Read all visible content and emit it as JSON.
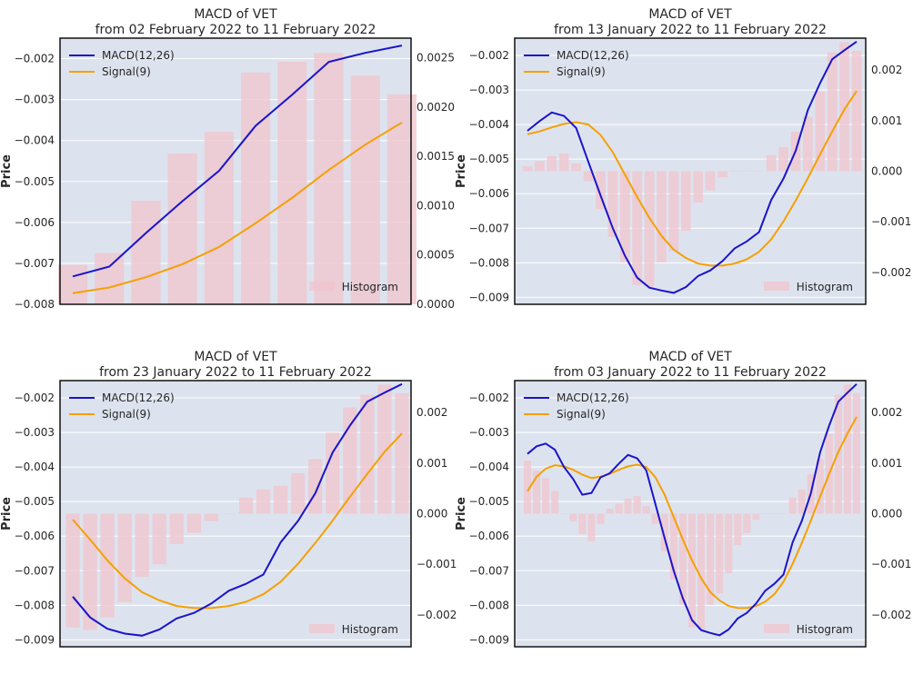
{
  "colors": {
    "background": "#ffffff",
    "plot_background": "#dde3ee",
    "grid": "#ffffff",
    "macd": "#1a14cc",
    "signal": "#f5a000",
    "histogram": "#f0c4cc"
  },
  "chart_data": [
    {
      "type": "line",
      "title": "MACD of VET",
      "subtitle": "from 02 February 2022 to 11 February 2022",
      "ylabel": "Price",
      "ylim": [
        -0.008,
        -0.0015
      ],
      "y_ticks": [
        -0.008,
        -0.007,
        -0.006,
        -0.005,
        -0.004,
        -0.003,
        -0.002
      ],
      "y_tick_labels": [
        "−0.008",
        "−0.007",
        "−0.006",
        "−0.005",
        "−0.004",
        "−0.003",
        "−0.002"
      ],
      "y2lim": [
        0.0,
        0.0027
      ],
      "y2_ticks": [
        0.0,
        0.0005,
        0.001,
        0.0015,
        0.002,
        0.0025
      ],
      "y2_tick_labels": [
        "0.0000",
        "0.0005",
        "0.0010",
        "0.0015",
        "0.0020",
        "0.0025"
      ],
      "legend_position": "top-left",
      "histogram_legend_position": "bottom-right",
      "series": [
        {
          "name": "MACD(12,26)",
          "role": "macd",
          "values": [
            -0.00732,
            -0.00708,
            -0.00626,
            -0.00548,
            -0.00474,
            -0.00364,
            -0.00288,
            -0.00208,
            -0.00186,
            -0.00168
          ]
        },
        {
          "name": "Signal(9)",
          "role": "signal",
          "values": [
            -0.00773,
            -0.00759,
            -0.00734,
            -0.00702,
            -0.0066,
            -0.00602,
            -0.0054,
            -0.00472,
            -0.0041,
            -0.00356
          ]
        },
        {
          "name": "Histogram",
          "role": "histogram",
          "values": [
            0.0004,
            0.00052,
            0.00105,
            0.00153,
            0.00175,
            0.00235,
            0.00246,
            0.00255,
            0.00232,
            0.00213
          ]
        }
      ]
    },
    {
      "type": "line",
      "title": "MACD of VET",
      "subtitle": "from 13 January 2022 to 11 February 2022",
      "ylabel": "Price",
      "ylim": [
        -0.0092,
        -0.0015
      ],
      "y_ticks": [
        -0.009,
        -0.008,
        -0.007,
        -0.006,
        -0.005,
        -0.004,
        -0.003,
        -0.002
      ],
      "y_tick_labels": [
        "−0.009",
        "−0.008",
        "−0.007",
        "−0.006",
        "−0.005",
        "−0.004",
        "−0.003",
        "−0.002"
      ],
      "y2lim": [
        -0.00263,
        0.00263
      ],
      "y2_ticks": [
        -0.002,
        -0.001,
        0.0,
        0.001,
        0.002
      ],
      "y2_tick_labels": [
        "−0.002",
        "−0.001",
        "0.000",
        "0.001",
        "0.002"
      ],
      "legend_position": "top-left",
      "histogram_legend_position": "bottom-right",
      "series": [
        {
          "name": "MACD(12,26)",
          "role": "macd",
          "values": [
            -0.00418,
            -0.0039,
            -0.00365,
            -0.00375,
            -0.0041,
            -0.00508,
            -0.00605,
            -0.007,
            -0.0078,
            -0.00843,
            -0.00872,
            -0.0088,
            -0.00887,
            -0.0087,
            -0.00838,
            -0.00822,
            -0.00795,
            -0.00758,
            -0.00738,
            -0.00711,
            -0.00618,
            -0.00556,
            -0.00476,
            -0.00358,
            -0.0028,
            -0.00211,
            -0.00185,
            -0.0016
          ]
        },
        {
          "name": "Signal(9)",
          "role": "signal",
          "values": [
            -0.00428,
            -0.0042,
            -0.00408,
            -0.00398,
            -0.00393,
            -0.004,
            -0.0043,
            -0.0048,
            -0.00545,
            -0.0061,
            -0.0067,
            -0.00722,
            -0.00762,
            -0.00786,
            -0.00802,
            -0.00808,
            -0.00808,
            -0.00802,
            -0.0079,
            -0.00768,
            -0.00732,
            -0.0068,
            -0.0062,
            -0.00555,
            -0.00486,
            -0.0042,
            -0.00356,
            -0.00303
          ]
        },
        {
          "name": "Histogram",
          "role": "histogram",
          "values": [
            0.0001,
            0.0002,
            0.0003,
            0.00035,
            0.00015,
            -0.0002,
            -0.00075,
            -0.0013,
            -0.0018,
            -0.00225,
            -0.00228,
            -0.0018,
            -0.00158,
            -0.00118,
            -0.00062,
            -0.00038,
            -0.00012,
            0.0,
            0.0,
            0.0,
            0.00032,
            0.00048,
            0.00078,
            0.00108,
            0.00158,
            0.00235,
            0.00255,
            0.00238
          ]
        }
      ]
    },
    {
      "type": "line",
      "title": "MACD of VET",
      "subtitle": "from 23 January 2022 to 11 February 2022",
      "ylabel": "Price",
      "ylim": [
        -0.0092,
        -0.0015
      ],
      "y_ticks": [
        -0.009,
        -0.008,
        -0.007,
        -0.006,
        -0.005,
        -0.004,
        -0.003,
        -0.002
      ],
      "y_tick_labels": [
        "−0.009",
        "−0.008",
        "−0.007",
        "−0.006",
        "−0.005",
        "−0.004",
        "−0.003",
        "−0.002"
      ],
      "y2lim": [
        -0.00263,
        0.00263
      ],
      "y2_ticks": [
        -0.002,
        -0.001,
        0.0,
        0.001,
        0.002
      ],
      "y2_tick_labels": [
        "−0.002",
        "−0.001",
        "0.000",
        "0.001",
        "0.002"
      ],
      "legend_position": "top-left",
      "histogram_legend_position": "bottom-right",
      "series": [
        {
          "name": "MACD(12,26)",
          "role": "macd",
          "values": [
            -0.00775,
            -0.00835,
            -0.00868,
            -0.00882,
            -0.00888,
            -0.0087,
            -0.00838,
            -0.00822,
            -0.00795,
            -0.00758,
            -0.00738,
            -0.00711,
            -0.00618,
            -0.00556,
            -0.00476,
            -0.00358,
            -0.0028,
            -0.00211,
            -0.00185,
            -0.0016
          ]
        },
        {
          "name": "Signal(9)",
          "role": "signal",
          "values": [
            -0.00552,
            -0.0061,
            -0.0067,
            -0.00722,
            -0.00762,
            -0.00786,
            -0.00802,
            -0.00808,
            -0.00808,
            -0.00802,
            -0.0079,
            -0.00768,
            -0.00732,
            -0.0068,
            -0.0062,
            -0.00555,
            -0.00486,
            -0.0042,
            -0.00356,
            -0.00303
          ]
        },
        {
          "name": "Histogram",
          "role": "histogram",
          "values": [
            -0.00225,
            -0.0023,
            -0.00205,
            -0.00175,
            -0.00125,
            -0.001,
            -0.0006,
            -0.00038,
            -0.00015,
            0.0,
            0.00032,
            0.00048,
            0.00055,
            0.0008,
            0.00108,
            0.0016,
            0.0021,
            0.00235,
            0.00255,
            0.00238
          ]
        }
      ]
    },
    {
      "type": "line",
      "title": "MACD of VET",
      "subtitle": "from 03 January 2022 to 11 February 2022",
      "ylabel": "Price",
      "ylim": [
        -0.0092,
        -0.0015
      ],
      "y_ticks": [
        -0.009,
        -0.008,
        -0.007,
        -0.006,
        -0.005,
        -0.004,
        -0.003,
        -0.002
      ],
      "y_tick_labels": [
        "−0.009",
        "−0.008",
        "−0.007",
        "−0.006",
        "−0.005",
        "−0.004",
        "−0.003",
        "−0.002"
      ],
      "y2lim": [
        -0.00263,
        0.00263
      ],
      "y2_ticks": [
        -0.002,
        -0.001,
        0.0,
        0.001,
        0.002
      ],
      "y2_tick_labels": [
        "−0.002",
        "−0.001",
        "0.000",
        "0.001",
        "0.002"
      ],
      "legend_position": "top-left",
      "histogram_legend_position": "bottom-right",
      "series": [
        {
          "name": "MACD(12,26)",
          "role": "macd",
          "values": [
            -0.00362,
            -0.0034,
            -0.00332,
            -0.0035,
            -0.004,
            -0.00435,
            -0.0048,
            -0.00475,
            -0.0043,
            -0.00418,
            -0.0039,
            -0.00365,
            -0.00375,
            -0.0041,
            -0.00508,
            -0.00605,
            -0.007,
            -0.0078,
            -0.00843,
            -0.00872,
            -0.0088,
            -0.00887,
            -0.0087,
            -0.00838,
            -0.00822,
            -0.00795,
            -0.00758,
            -0.00738,
            -0.00711,
            -0.00618,
            -0.00556,
            -0.00476,
            -0.00358,
            -0.0028,
            -0.00211,
            -0.00185,
            -0.0016
          ]
        },
        {
          "name": "Signal(9)",
          "role": "signal",
          "values": [
            -0.0047,
            -0.00428,
            -0.00405,
            -0.00395,
            -0.00398,
            -0.00408,
            -0.00422,
            -0.00432,
            -0.00428,
            -0.0042,
            -0.00408,
            -0.00398,
            -0.00393,
            -0.004,
            -0.0043,
            -0.0048,
            -0.00545,
            -0.0061,
            -0.0067,
            -0.00722,
            -0.00762,
            -0.00786,
            -0.00802,
            -0.00808,
            -0.00808,
            -0.00802,
            -0.0079,
            -0.00768,
            -0.00732,
            -0.0068,
            -0.0062,
            -0.00555,
            -0.00486,
            -0.0042,
            -0.00356,
            -0.00303,
            -0.00255
          ]
        },
        {
          "name": "Histogram",
          "role": "histogram",
          "values": [
            0.00105,
            0.00085,
            0.0007,
            0.00045,
            0.0,
            -0.00015,
            -0.0004,
            -0.00055,
            -0.0002,
            0.0001,
            0.0002,
            0.0003,
            0.00035,
            0.00015,
            -0.0002,
            -0.00075,
            -0.0013,
            -0.0018,
            -0.00225,
            -0.00228,
            -0.0018,
            -0.00158,
            -0.00118,
            -0.00062,
            -0.00038,
            -0.00012,
            0.0,
            0.0,
            0.0,
            0.00032,
            0.00048,
            0.00078,
            0.00108,
            0.00158,
            0.00235,
            0.00255,
            0.00238
          ]
        }
      ]
    }
  ]
}
